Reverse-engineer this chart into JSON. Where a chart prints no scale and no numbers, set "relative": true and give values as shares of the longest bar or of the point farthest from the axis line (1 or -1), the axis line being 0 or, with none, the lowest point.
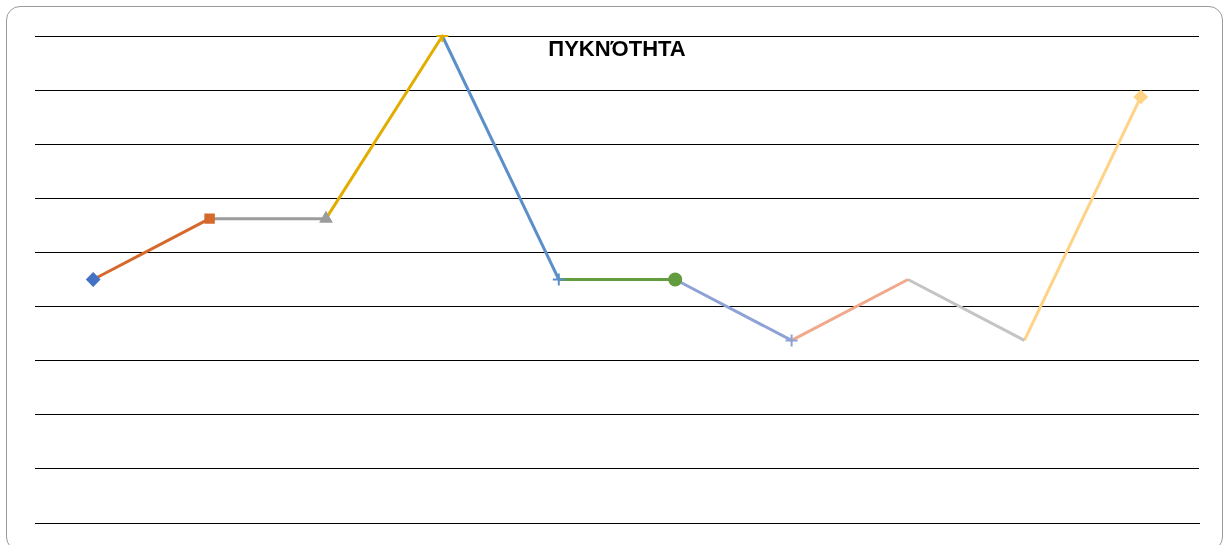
{
  "chart_data": {
    "type": "line",
    "title": "ΠΥΚΝΌΤΗΤΑ",
    "relative": true,
    "grid": "y",
    "legend": false,
    "categories": [
      null,
      null,
      null,
      null,
      null,
      null,
      null,
      null,
      null,
      null
    ],
    "series": [
      {
        "color": "#4472c4",
        "marker": "diamond",
        "values": [
          0.5,
          null,
          null,
          null,
          null,
          null,
          null,
          null,
          null,
          null
        ]
      },
      {
        "color": "#d5692c",
        "marker": "square",
        "values": [
          0.5,
          0.625,
          null,
          null,
          null,
          null,
          null,
          null,
          null,
          null
        ]
      },
      {
        "color": "#9b9b9b",
        "marker": "triangle",
        "values": [
          null,
          0.625,
          0.625,
          null,
          null,
          null,
          null,
          null,
          null,
          null
        ]
      },
      {
        "color": "#e2ac00",
        "marker": "cross",
        "values": [
          null,
          null,
          0.625,
          1,
          null,
          null,
          null,
          null,
          null,
          null
        ]
      },
      {
        "color": "#5b8fc9",
        "marker": "cross",
        "values": [
          null,
          null,
          null,
          1,
          0.5,
          null,
          null,
          null,
          null,
          null
        ]
      },
      {
        "color": "#629c3e",
        "marker": "circle",
        "values": [
          null,
          null,
          null,
          null,
          0.5,
          0.5,
          null,
          null,
          null,
          null
        ]
      },
      {
        "color": "#8fa2d6",
        "marker": "cross",
        "values": [
          null,
          null,
          null,
          null,
          null,
          0.5,
          0.375,
          null,
          null,
          null
        ]
      },
      {
        "color": "#f0a98a",
        "marker": "none",
        "values": [
          null,
          null,
          null,
          null,
          null,
          null,
          0.375,
          0.5,
          null,
          null
        ]
      },
      {
        "color": "#c4c4c4",
        "marker": "none",
        "values": [
          null,
          null,
          null,
          null,
          null,
          null,
          null,
          0.5,
          0.375,
          null
        ]
      },
      {
        "color": "#ffd385",
        "marker": "diamond",
        "values": [
          null,
          null,
          null,
          null,
          null,
          null,
          null,
          null,
          0.375,
          0.875
        ]
      }
    ]
  }
}
